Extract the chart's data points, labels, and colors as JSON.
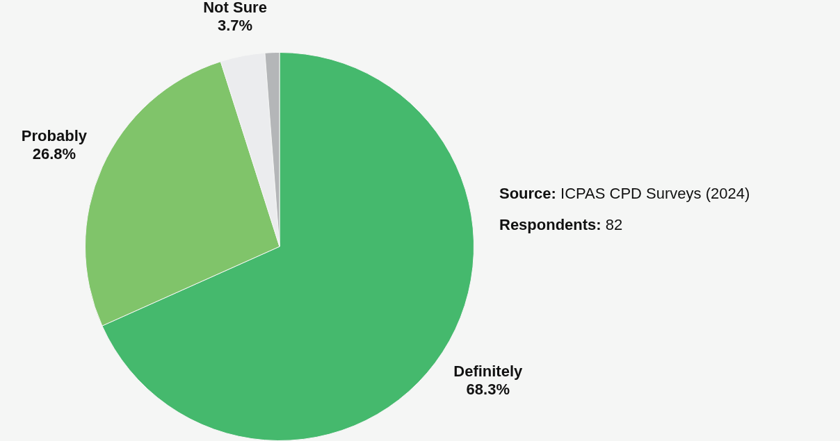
{
  "chart_data": {
    "type": "pie",
    "categories": [
      "Definitely",
      "Probably",
      "Not Sure",
      null
    ],
    "values": [
      68.3,
      26.8,
      3.7,
      1.2
    ],
    "value_labels": [
      "68.3%",
      "26.8%",
      "3.7%",
      null
    ],
    "colors": [
      "#45b96d",
      "#80c46a",
      "#ebecee",
      "#b4b6b8"
    ],
    "annotations": [
      "Source: ICPAS CPD Surveys (2024)",
      "Respondents: 82"
    ],
    "legend": false
  }
}
